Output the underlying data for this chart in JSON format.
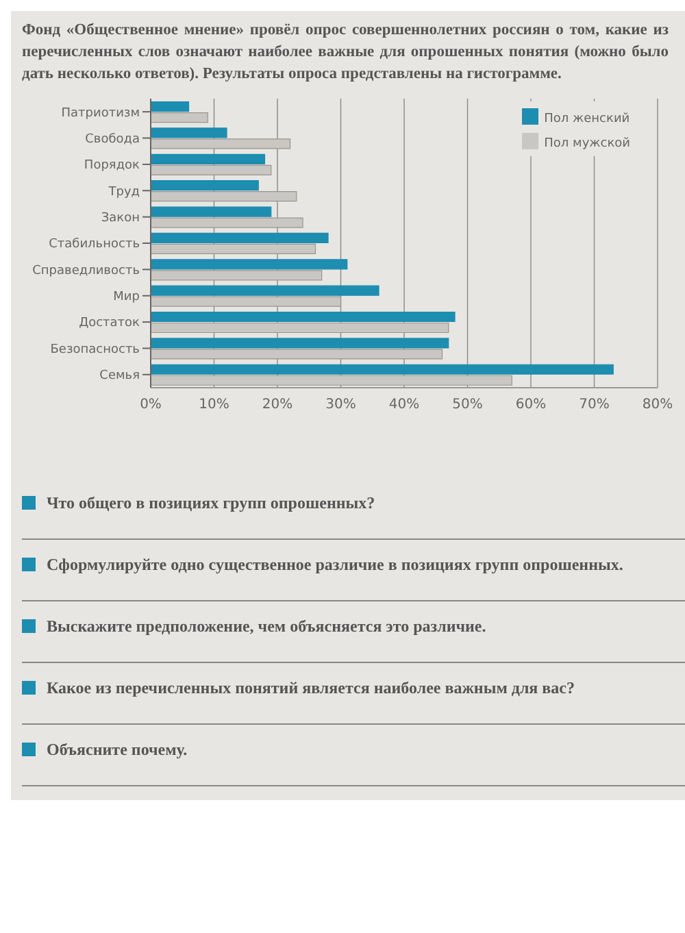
{
  "chart_data": {
    "type": "bar",
    "orientation": "horizontal",
    "title": "Фонд «Общественное мнение» провёл опрос совершеннолетних россиян о том, какие из перечисленных слов означают наиболее важные для опрошенных понятия (можно было дать несколько ответов). Результаты опроса представлены на гистограмме.",
    "categories": [
      "Патриотизм",
      "Свобода",
      "Порядок",
      "Труд",
      "Закон",
      "Стабильность",
      "Справедливость",
      "Мир",
      "Достаток",
      "Безопасность",
      "Семья"
    ],
    "series": [
      {
        "name": "Пол женский",
        "color": "#1d8db0",
        "values": [
          6,
          12,
          18,
          17,
          19,
          28,
          31,
          36,
          48,
          47,
          73
        ]
      },
      {
        "name": "Пол мужской",
        "color": "#c9c7c3",
        "values": [
          9,
          22,
          19,
          23,
          24,
          26,
          27,
          30,
          47,
          46,
          57
        ]
      }
    ],
    "xlim": [
      0,
      80
    ],
    "xticks": [
      {
        "value": 0,
        "label": "0%"
      },
      {
        "value": 10,
        "label": "10%"
      },
      {
        "value": 20,
        "label": "20%"
      },
      {
        "value": 30,
        "label": "30%"
      },
      {
        "value": 40,
        "label": "40%"
      },
      {
        "value": 50,
        "label": "50%"
      },
      {
        "value": 60,
        "label": "60%"
      },
      {
        "value": 70,
        "label": "70%"
      },
      {
        "value": 80,
        "label": "80%"
      }
    ],
    "grid": "x",
    "legend": "top right",
    "annotations": [
      "Что общего в позициях групп опрошенных?",
      "Сформулируйте одно существенное различие в позициях групп опрошенных.",
      "Выскажите предположение, чем объясняется это различие.",
      "Какое из перечисленных понятий является наиболее важным для вас?",
      "Объясните почему."
    ]
  }
}
